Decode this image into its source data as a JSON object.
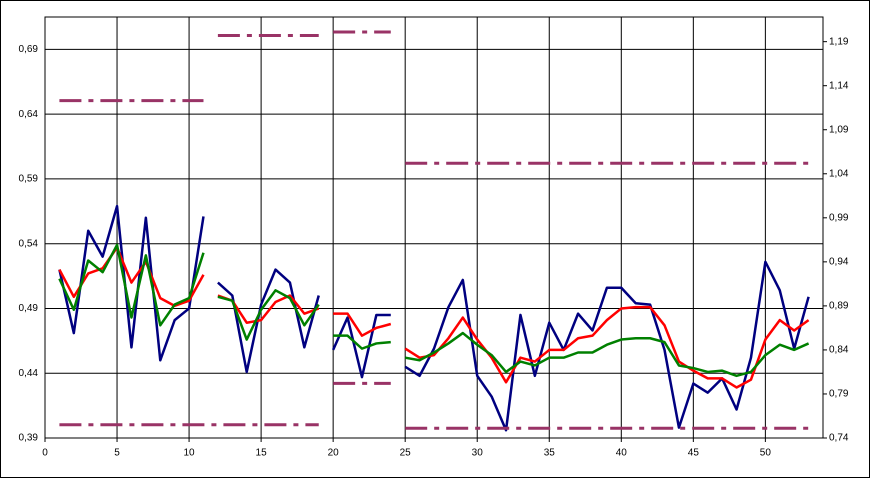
{
  "chart_data": {
    "type": "line",
    "xlim": [
      0,
      54
    ],
    "xticks": [
      0,
      5,
      10,
      15,
      20,
      25,
      30,
      35,
      40,
      45,
      50
    ],
    "ylim": [
      0.39,
      0.715
    ],
    "yticks": [
      {
        "value": 0.39,
        "label": "0,39"
      },
      {
        "value": 0.44,
        "label": "0,44"
      },
      {
        "value": 0.49,
        "label": "0,49"
      },
      {
        "value": 0.54,
        "label": "0,54"
      },
      {
        "value": 0.59,
        "label": "0,59"
      },
      {
        "value": 0.64,
        "label": "0,64"
      },
      {
        "value": 0.69,
        "label": "0,69"
      }
    ],
    "y2lim": [
      0.74,
      1.218
    ],
    "y2ticks": [
      {
        "value": 0.74,
        "label": "0,74"
      },
      {
        "value": 0.79,
        "label": "0,79"
      },
      {
        "value": 0.84,
        "label": "0,84"
      },
      {
        "value": 0.89,
        "label": "0,89"
      },
      {
        "value": 0.94,
        "label": "0,94"
      },
      {
        "value": 0.99,
        "label": "0,99"
      },
      {
        "value": 1.04,
        "label": "1,04"
      },
      {
        "value": 1.09,
        "label": "1,09"
      },
      {
        "value": 1.14,
        "label": "1,14"
      },
      {
        "value": 1.19,
        "label": "1,19"
      }
    ],
    "grid": true,
    "series": [
      {
        "color": "#000080",
        "x": [
          1,
          2,
          3,
          4,
          5,
          6,
          7,
          8,
          9,
          10,
          11
        ],
        "values": [
          0.52,
          0.471,
          0.55,
          0.53,
          0.569,
          0.46,
          0.56,
          0.45,
          0.481,
          0.49,
          0.561
        ]
      },
      {
        "color": "#000080",
        "x": [
          12,
          13,
          14,
          15,
          16,
          17,
          18,
          19
        ],
        "values": [
          0.51,
          0.5,
          0.441,
          0.493,
          0.52,
          0.51,
          0.46,
          0.5
        ]
      },
      {
        "color": "#000080",
        "x": [
          20,
          21,
          22,
          23,
          24
        ],
        "values": [
          0.458,
          0.483,
          0.437,
          0.485,
          0.485
        ]
      },
      {
        "color": "#000080",
        "x": [
          25,
          26,
          27,
          28,
          29,
          30,
          31,
          32,
          33,
          34,
          35,
          36,
          37,
          38,
          39,
          40,
          41,
          42,
          43,
          44,
          45,
          46,
          47,
          48,
          49,
          50,
          51,
          52,
          53
        ],
        "values": [
          0.445,
          0.438,
          0.459,
          0.491,
          0.512,
          0.438,
          0.422,
          0.396,
          0.485,
          0.438,
          0.479,
          0.458,
          0.486,
          0.473,
          0.506,
          0.506,
          0.494,
          0.493,
          0.458,
          0.398,
          0.432,
          0.425,
          0.436,
          0.412,
          0.452,
          0.526,
          0.504,
          0.459,
          0.499
        ]
      },
      {
        "color": "#ff0000",
        "x": [
          1,
          2,
          3,
          4,
          5,
          6,
          7,
          8,
          9,
          10,
          11
        ],
        "values": [
          0.52,
          0.499,
          0.517,
          0.521,
          0.537,
          0.51,
          0.526,
          0.498,
          0.492,
          0.496,
          0.516
        ]
      },
      {
        "color": "#ff0000",
        "x": [
          12,
          13,
          14,
          15,
          16,
          17,
          18,
          19
        ],
        "values": [
          0.5,
          0.496,
          0.479,
          0.481,
          0.495,
          0.5,
          0.486,
          0.49
        ]
      },
      {
        "color": "#ff0000",
        "x": [
          20,
          21,
          22,
          23,
          24
        ],
        "values": [
          0.486,
          0.486,
          0.469,
          0.475,
          0.478
        ]
      },
      {
        "color": "#ff0000",
        "x": [
          25,
          26,
          27,
          28,
          29,
          30,
          31,
          32,
          33,
          34,
          35,
          36,
          37,
          38,
          39,
          40,
          41,
          42,
          43,
          44,
          45,
          46,
          47,
          48,
          49,
          50,
          51,
          52,
          53
        ],
        "values": [
          0.459,
          0.452,
          0.454,
          0.467,
          0.483,
          0.466,
          0.452,
          0.433,
          0.452,
          0.449,
          0.458,
          0.458,
          0.467,
          0.469,
          0.481,
          0.49,
          0.491,
          0.491,
          0.477,
          0.449,
          0.442,
          0.436,
          0.436,
          0.429,
          0.435,
          0.466,
          0.481,
          0.473,
          0.481
        ]
      },
      {
        "color": "#008000",
        "x": [
          1,
          2,
          3,
          4,
          5,
          6,
          7,
          8,
          9,
          10,
          11
        ],
        "values": [
          0.513,
          0.489,
          0.527,
          0.518,
          0.539,
          0.483,
          0.531,
          0.477,
          0.493,
          0.498,
          0.533
        ]
      },
      {
        "color": "#008000",
        "x": [
          12,
          13,
          14,
          15,
          16,
          17,
          18,
          19
        ],
        "values": [
          0.499,
          0.496,
          0.466,
          0.489,
          0.504,
          0.498,
          0.477,
          0.493
        ]
      },
      {
        "color": "#008000",
        "x": [
          20,
          21,
          22,
          23,
          24
        ],
        "values": [
          0.469,
          0.469,
          0.459,
          0.463,
          0.464
        ]
      },
      {
        "color": "#008000",
        "x": [
          25,
          26,
          27,
          28,
          29,
          30,
          31,
          32,
          33,
          34,
          35,
          36,
          37,
          38,
          39,
          40,
          41,
          42,
          43,
          44,
          45,
          46,
          47,
          48,
          49,
          50,
          51,
          52,
          53
        ],
        "values": [
          0.452,
          0.45,
          0.456,
          0.463,
          0.471,
          0.462,
          0.454,
          0.441,
          0.449,
          0.446,
          0.452,
          0.452,
          0.456,
          0.456,
          0.462,
          0.466,
          0.467,
          0.467,
          0.464,
          0.446,
          0.444,
          0.441,
          0.442,
          0.438,
          0.441,
          0.454,
          0.462,
          0.458,
          0.463
        ]
      },
      {
        "color": "#993366",
        "axis": "y2",
        "style": "dashdot",
        "x": [
          1,
          11
        ],
        "values": [
          1.123,
          1.123
        ]
      },
      {
        "color": "#993366",
        "axis": "y2",
        "style": "dashdot",
        "x": [
          12,
          19
        ],
        "values": [
          1.197,
          1.197
        ]
      },
      {
        "color": "#993366",
        "axis": "y2",
        "style": "dashdot",
        "x": [
          20,
          24
        ],
        "values": [
          1.201,
          1.201
        ]
      },
      {
        "color": "#993366",
        "axis": "y2",
        "style": "dashdot",
        "x": [
          25,
          53
        ],
        "values": [
          1.052,
          1.052
        ]
      },
      {
        "color": "#993366",
        "axis": "y2",
        "style": "dashdot",
        "x": [
          1,
          19
        ],
        "values": [
          0.755,
          0.755
        ]
      },
      {
        "color": "#993366",
        "axis": "y2",
        "style": "dashdot",
        "x": [
          20,
          24
        ],
        "values": [
          0.802,
          0.802
        ]
      },
      {
        "color": "#993366",
        "axis": "y2",
        "style": "dashdot",
        "x": [
          25,
          53
        ],
        "values": [
          0.751,
          0.751
        ]
      }
    ]
  }
}
